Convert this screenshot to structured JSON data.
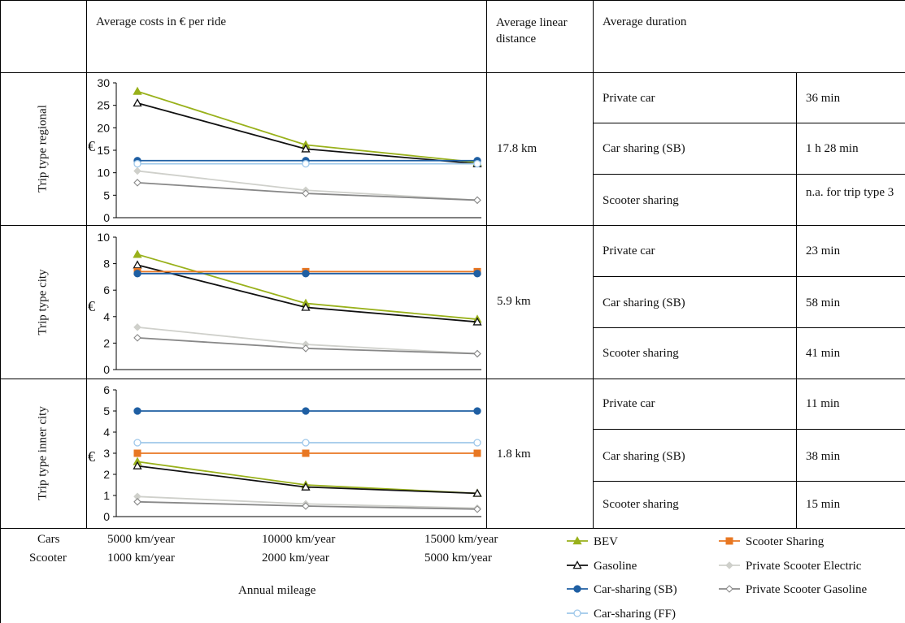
{
  "header": {
    "cost_title": "Average costs in € per ride",
    "distance_title": "Average linear distance",
    "duration_title": "Average duration"
  },
  "rows": [
    {
      "label": "Trip type regional",
      "distance": "17.8 km",
      "durations": [
        {
          "mode": "Private car",
          "value": "36 min"
        },
        {
          "mode": "Car sharing (SB)",
          "value": "1 h 28 min"
        },
        {
          "mode": "Scooter sharing",
          "value": "n.a. for trip type 3"
        }
      ]
    },
    {
      "label": "Trip type city",
      "distance": "5.9 km",
      "durations": [
        {
          "mode": "Private car",
          "value": "23 min"
        },
        {
          "mode": "Car sharing (SB)",
          "value": "58 min"
        },
        {
          "mode": "Scooter sharing",
          "value": "41 min"
        }
      ]
    },
    {
      "label": "Trip type inner city",
      "distance": "1.8 km",
      "durations": [
        {
          "mode": "Private car",
          "value": "11 min"
        },
        {
          "mode": "Car sharing (SB)",
          "value": "38 min"
        },
        {
          "mode": "Scooter sharing",
          "value": "15 min"
        }
      ]
    }
  ],
  "footer": {
    "cars_label": "Cars",
    "scooter_label": "Scooter",
    "cars_mileage": [
      "5000 km/year",
      "10000 km/year",
      "15000 km/year"
    ],
    "scooter_mileage": [
      "1000 km/year",
      "2000 km/year",
      "5000 km/year"
    ],
    "xlabel": "Annual mileage"
  },
  "legend": [
    {
      "name": "BEV",
      "color": "#99b11b",
      "marker": "triangle-filled"
    },
    {
      "name": "Scooter Sharing",
      "color": "#e87722",
      "marker": "square-filled"
    },
    {
      "name": "Gasoline",
      "color": "#111111",
      "marker": "triangle-open"
    },
    {
      "name": "Private Scooter Electric",
      "color": "#cfd0cb",
      "marker": "diamond-filled"
    },
    {
      "name": "Car-sharing  (SB)",
      "color": "#1f5fa3",
      "marker": "circle-filled"
    },
    {
      "name": "Private Scooter Gasoline",
      "color": "#888888",
      "marker": "diamond-open"
    },
    {
      "name": "Car-sharing (FF)",
      "color": "#9fc8ea",
      "marker": "circle-open"
    }
  ],
  "chart_data": [
    {
      "type": "line",
      "ylabel": "€",
      "ylim": [
        0,
        30
      ],
      "yticks": [
        0,
        5,
        10,
        15,
        20,
        25,
        30
      ],
      "x": [
        "5000 km/year",
        "10000 km/year",
        "15000 km/year"
      ],
      "series": [
        {
          "name": "BEV",
          "color": "#99b11b",
          "marker": "triangle-filled",
          "values": [
            28.1,
            16.2,
            12.3
          ]
        },
        {
          "name": "Gasoline",
          "color": "#111111",
          "marker": "triangle-open",
          "values": [
            25.5,
            15.3,
            12.0
          ]
        },
        {
          "name": "Car-sharing  (SB)",
          "color": "#1f5fa3",
          "marker": "circle-filled",
          "values": [
            12.7,
            12.7,
            12.7
          ]
        },
        {
          "name": "Car-sharing (FF)",
          "color": "#9fc8ea",
          "marker": "circle-open",
          "values": [
            12.0,
            12.0,
            12.0
          ]
        },
        {
          "name": "Private Scooter Electric",
          "color": "#cfd0cb",
          "marker": "diamond-filled",
          "values": [
            10.4,
            6.1,
            3.9
          ]
        },
        {
          "name": "Private Scooter Gasoline",
          "color": "#888888",
          "marker": "diamond-open",
          "values": [
            7.8,
            5.4,
            3.9
          ]
        }
      ]
    },
    {
      "type": "line",
      "ylabel": "€",
      "ylim": [
        0,
        10
      ],
      "yticks": [
        0,
        2,
        4,
        6,
        8,
        10
      ],
      "x": [
        "5000 km/year",
        "10000 km/year",
        "15000 km/year"
      ],
      "series": [
        {
          "name": "BEV",
          "color": "#99b11b",
          "marker": "triangle-filled",
          "values": [
            8.7,
            5.0,
            3.8
          ]
        },
        {
          "name": "Gasoline",
          "color": "#111111",
          "marker": "triangle-open",
          "values": [
            7.9,
            4.7,
            3.6
          ]
        },
        {
          "name": "Scooter Sharing",
          "color": "#e87722",
          "marker": "square-filled",
          "values": [
            7.4,
            7.4,
            7.4
          ]
        },
        {
          "name": "Car-sharing  (SB)",
          "color": "#1f5fa3",
          "marker": "circle-filled",
          "values": [
            7.25,
            7.25,
            7.25
          ]
        },
        {
          "name": "Private Scooter Electric",
          "color": "#cfd0cb",
          "marker": "diamond-filled",
          "values": [
            3.2,
            1.9,
            1.2
          ]
        },
        {
          "name": "Private Scooter Gasoline",
          "color": "#888888",
          "marker": "diamond-open",
          "values": [
            2.4,
            1.6,
            1.2
          ]
        }
      ]
    },
    {
      "type": "line",
      "ylabel": "€",
      "ylim": [
        0,
        6
      ],
      "yticks": [
        0,
        1,
        2,
        3,
        4,
        5,
        6
      ],
      "x": [
        "5000 km/year",
        "10000 km/year",
        "15000 km/year"
      ],
      "series": [
        {
          "name": "Car-sharing  (SB)",
          "color": "#1f5fa3",
          "marker": "circle-filled",
          "values": [
            5.0,
            5.0,
            5.0
          ]
        },
        {
          "name": "Car-sharing (FF)",
          "color": "#9fc8ea",
          "marker": "circle-open",
          "values": [
            3.5,
            3.5,
            3.5
          ]
        },
        {
          "name": "Scooter Sharing",
          "color": "#e87722",
          "marker": "square-filled",
          "values": [
            3.0,
            3.0,
            3.0
          ]
        },
        {
          "name": "BEV",
          "color": "#99b11b",
          "marker": "triangle-filled",
          "values": [
            2.6,
            1.5,
            1.1
          ]
        },
        {
          "name": "Gasoline",
          "color": "#111111",
          "marker": "triangle-open",
          "values": [
            2.4,
            1.4,
            1.1
          ]
        },
        {
          "name": "Private Scooter Electric",
          "color": "#cfd0cb",
          "marker": "diamond-filled",
          "values": [
            0.95,
            0.6,
            0.4
          ]
        },
        {
          "name": "Private Scooter Gasoline",
          "color": "#888888",
          "marker": "diamond-open",
          "values": [
            0.7,
            0.5,
            0.35
          ]
        }
      ]
    }
  ]
}
